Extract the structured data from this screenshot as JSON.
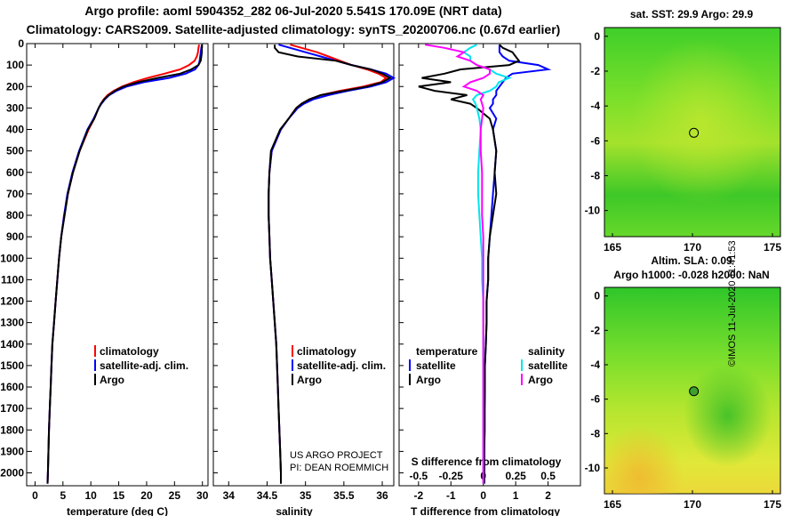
{
  "header": {
    "title_line1": "Argo profile: aoml 5904352_282 06-Jul-2020 5.541S 170.09E (NRT data)",
    "title_line2": "Climatology: CARS2009. Satellite-adjusted climatology: synTS_20200706.nc (0.67d earlier)"
  },
  "credits": {
    "line1": "US ARGO PROJECT",
    "line2": "PI: DEAN ROEMMICH",
    "stamp": "©IMOS 11-Jul-2020 11:41:53"
  },
  "colors": {
    "climatology": "#ff0000",
    "satellite": "#0000ff",
    "argo": "#000000",
    "sal_satellite": "#00e5ee",
    "sal_argo": "#ff00ff"
  },
  "depth_axis": {
    "ticks": [
      "0",
      "100",
      "200",
      "300",
      "400",
      "500",
      "600",
      "700",
      "800",
      "900",
      "1000",
      "1100",
      "1200",
      "1300",
      "1400",
      "1500",
      "1600",
      "1700",
      "1800",
      "1900",
      "2000"
    ],
    "range": [
      0,
      2060
    ]
  },
  "chart_data": [
    {
      "type": "line",
      "panel": "temperature",
      "xlabel": "temperature (deg C)",
      "xlim": [
        -1.5,
        31
      ],
      "xticks": [
        "0",
        "5",
        "10",
        "15",
        "20",
        "25",
        "30"
      ],
      "legend": [
        "climatology",
        "satellite-adj. clim.",
        "Argo"
      ],
      "depth": [
        5,
        20,
        40,
        60,
        80,
        100,
        120,
        140,
        160,
        180,
        200,
        220,
        240,
        260,
        280,
        300,
        350,
        400,
        500,
        600,
        700,
        800,
        900,
        1000,
        1100,
        1200,
        1300,
        1400,
        1500,
        1600,
        1700,
        1800,
        1900,
        2000,
        2050
      ],
      "series": [
        {
          "name": "climatology",
          "values": [
            29.4,
            29.3,
            29.2,
            29.0,
            28.6,
            27.6,
            26.0,
            23.2,
            20.2,
            17.6,
            15.6,
            14.1,
            13.0,
            12.3,
            11.8,
            11.4,
            10.6,
            9.6,
            8.0,
            6.8,
            5.9,
            5.2,
            4.7,
            4.3,
            4.0,
            3.7,
            3.4,
            3.1,
            2.95,
            2.8,
            2.65,
            2.5,
            2.4,
            2.3,
            2.25
          ]
        },
        {
          "name": "satellite-adj. clim.",
          "values": [
            29.9,
            29.8,
            29.7,
            29.6,
            29.5,
            29.3,
            28.7,
            27.0,
            24.0,
            19.5,
            16.4,
            14.6,
            13.3,
            12.5,
            11.9,
            11.4,
            10.5,
            9.4,
            7.9,
            6.7,
            5.8,
            5.2,
            4.7,
            4.3,
            4.0,
            3.7,
            3.4,
            3.1,
            2.95,
            2.8,
            2.65,
            2.5,
            2.4,
            2.3,
            2.25
          ]
        },
        {
          "name": "Argo",
          "values": [
            29.9,
            29.9,
            29.9,
            29.8,
            29.7,
            29.3,
            28.0,
            26.0,
            22.0,
            18.5,
            15.8,
            14.3,
            13.2,
            12.4,
            11.8,
            11.4,
            10.6,
            9.5,
            8.0,
            6.8,
            5.9,
            5.3,
            4.7,
            4.3,
            4.0,
            3.7,
            3.4,
            3.1,
            2.95,
            2.8,
            2.65,
            2.5,
            2.4,
            2.3,
            2.25
          ]
        }
      ]
    },
    {
      "type": "line",
      "panel": "salinity",
      "xlabel": "salinity",
      "xlim": [
        33.8,
        36.15
      ],
      "xticks": [
        "34",
        "34.5",
        "35",
        "35.5",
        "36"
      ],
      "legend": [
        "climatology",
        "satellite-adj. clim.",
        "Argo"
      ],
      "depth": [
        5,
        20,
        40,
        60,
        80,
        100,
        120,
        140,
        160,
        180,
        200,
        220,
        240,
        260,
        280,
        300,
        350,
        400,
        500,
        600,
        700,
        800,
        900,
        1000,
        1100,
        1200,
        1300,
        1400,
        1500,
        1600,
        1700,
        1800,
        1900,
        2000,
        2050
      ],
      "series": [
        {
          "name": "climatology",
          "values": [
            34.8,
            34.95,
            35.15,
            35.3,
            35.45,
            35.6,
            35.8,
            35.95,
            36.05,
            35.98,
            35.75,
            35.45,
            35.2,
            35.05,
            34.95,
            34.88,
            34.78,
            34.68,
            34.56,
            34.53,
            34.52,
            34.52,
            34.53,
            34.54,
            34.56,
            34.58,
            34.6,
            34.62,
            34.63,
            34.64,
            34.65,
            34.66,
            34.67,
            34.68,
            34.68
          ]
        },
        {
          "name": "satellite-adj. clim.",
          "values": [
            34.65,
            34.8,
            35.0,
            35.2,
            35.4,
            35.6,
            35.85,
            36.05,
            36.15,
            36.05,
            35.85,
            35.55,
            35.3,
            35.1,
            34.98,
            34.9,
            34.78,
            34.68,
            34.56,
            34.53,
            34.52,
            34.52,
            34.53,
            34.54,
            34.56,
            34.58,
            34.6,
            34.62,
            34.63,
            34.64,
            34.65,
            34.66,
            34.67,
            34.68,
            34.68
          ]
        },
        {
          "name": "Argo",
          "values": [
            34.6,
            34.6,
            34.65,
            34.9,
            35.4,
            35.6,
            35.85,
            36.0,
            36.1,
            36.0,
            35.8,
            35.5,
            35.2,
            35.05,
            34.95,
            34.88,
            34.78,
            34.67,
            34.55,
            34.53,
            34.52,
            34.52,
            34.53,
            34.54,
            34.56,
            34.58,
            34.6,
            34.62,
            34.63,
            34.64,
            34.65,
            34.66,
            34.67,
            34.68,
            34.68
          ]
        }
      ]
    },
    {
      "type": "line",
      "panel": "difference",
      "xlabel": "T difference from climatology",
      "xlim": [
        -2.6,
        3.0
      ],
      "xticks": [
        "-2",
        "-1",
        "0",
        "1",
        "2"
      ],
      "s_axis_title": "S difference from climatology",
      "s_xticks": [
        "-0.5",
        "-0.25",
        "0",
        "0.25",
        "0.5"
      ],
      "s_xlim": [
        -0.65,
        0.75
      ],
      "legend_temperature": [
        "temperature",
        "satellite",
        "Argo"
      ],
      "legend_salinity": [
        "salinity",
        "satellite",
        "Argo"
      ],
      "depth": [
        5,
        20,
        40,
        60,
        80,
        100,
        120,
        140,
        160,
        180,
        200,
        220,
        240,
        260,
        280,
        300,
        350,
        400,
        500,
        600,
        700,
        800,
        900,
        1000,
        1100,
        1200,
        1300,
        1400,
        1500,
        1600,
        1700,
        1800,
        1900,
        2000,
        2050
      ],
      "series": [
        {
          "name": "T satellite",
          "values": [
            0.5,
            0.5,
            0.5,
            0.6,
            0.8,
            1.7,
            2.0,
            0.9,
            0.7,
            0.6,
            0.5,
            0.4,
            0.4,
            0.3,
            0.3,
            0.2,
            0.4,
            0.3,
            0.4,
            0.35,
            0.3,
            0.25,
            0.2,
            0.15,
            0.15,
            0.1,
            0.1,
            0.08,
            0.05,
            0.05,
            0.04,
            0.04,
            0.03,
            0.03,
            0.03
          ]
        },
        {
          "name": "T Argo",
          "values": [
            0.5,
            0.6,
            0.9,
            1.0,
            1.1,
            0.8,
            -0.7,
            -1.2,
            -1.9,
            -1.0,
            -2.0,
            -1.5,
            -0.5,
            -1.0,
            -0.4,
            -0.2,
            0.2,
            0.3,
            0.4,
            0.35,
            0.4,
            0.3,
            0.2,
            0.15,
            0.15,
            0.1,
            0.1,
            0.08,
            0.05,
            0.05,
            0.04,
            0.04,
            0.03,
            0.03,
            0.03
          ]
        },
        {
          "name": "S satellite",
          "values": [
            -0.05,
            -0.1,
            -0.15,
            -0.1,
            -0.1,
            -0.05,
            0.05,
            0.1,
            0.2,
            0.12,
            0.1,
            0.05,
            -0.05,
            -0.08,
            -0.06,
            -0.05,
            -0.03,
            -0.02,
            -0.03,
            -0.04,
            -0.04,
            -0.03,
            -0.02,
            -0.01,
            -0.01,
            0,
            0,
            0,
            0,
            0,
            0,
            0,
            0,
            0,
            0
          ]
        },
        {
          "name": "S Argo",
          "values": [
            -0.45,
            -0.3,
            -0.15,
            -0.2,
            -0.1,
            -0.05,
            0.05,
            0.05,
            0.0,
            -0.1,
            -0.15,
            -0.05,
            0.0,
            -0.02,
            -0.01,
            0.0,
            -0.01,
            -0.02,
            -0.02,
            -0.01,
            -0.01,
            -0.01,
            0,
            0,
            0,
            0,
            0,
            0,
            0,
            0,
            0,
            0,
            0,
            0,
            0
          ]
        }
      ]
    },
    {
      "type": "heatmap",
      "panel": "sst_map",
      "title": "sat. SST: 29.9 Argo: 29.9",
      "xticks": [
        "165",
        "170",
        "175"
      ],
      "yticks": [
        "0",
        "-2",
        "-4",
        "-6",
        "-8",
        "-10"
      ],
      "xlim": [
        164.5,
        175.5
      ],
      "ylim": [
        -11.5,
        0.5
      ],
      "marker": {
        "lon": 170.09,
        "lat": -5.541
      }
    },
    {
      "type": "heatmap",
      "panel": "sla_map",
      "title_line1": "Altim. SLA: 0.09",
      "title_line2": "Argo h1000: -0.028 h2000: NaN",
      "xticks": [
        "165",
        "170",
        "175"
      ],
      "yticks": [
        "0",
        "-2",
        "-4",
        "-6",
        "-8",
        "-10"
      ],
      "xlim": [
        164.5,
        175.5
      ],
      "ylim": [
        -11.5,
        0.5
      ],
      "marker": {
        "lon": 170.09,
        "lat": -5.541
      }
    }
  ]
}
